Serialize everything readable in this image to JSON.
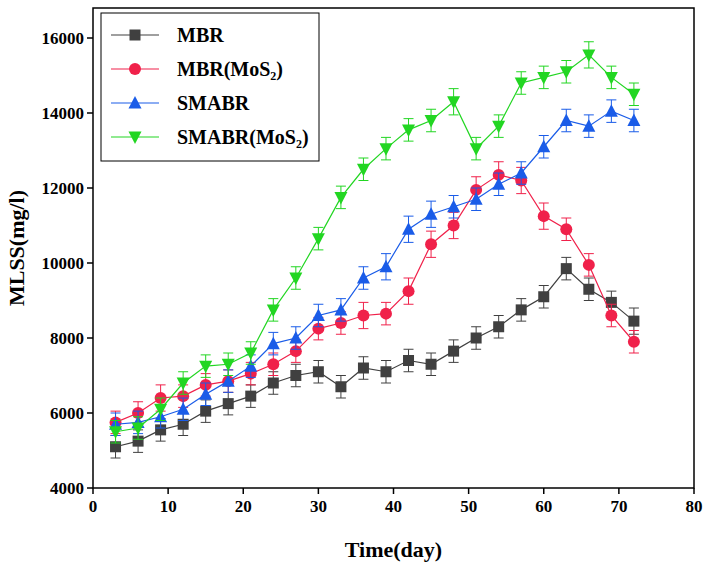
{
  "chart_data": {
    "type": "line",
    "x_label": "Time(day)",
    "y_label": "MLSS(mg/l)",
    "x": [
      3,
      6,
      9,
      12,
      15,
      18,
      21,
      24,
      27,
      30,
      33,
      36,
      39,
      42,
      45,
      48,
      51,
      54,
      57,
      60,
      63,
      66,
      69,
      72
    ],
    "xlim": [
      0,
      80
    ],
    "xticks": [
      0,
      10,
      20,
      30,
      40,
      50,
      60,
      70,
      80
    ],
    "ylim": [
      4000,
      16800
    ],
    "yticks": [
      4000,
      6000,
      8000,
      10000,
      12000,
      14000,
      16000
    ],
    "grid": false,
    "legend": "upper left",
    "series": [
      {
        "name": "MBR",
        "color": "#404040",
        "marker": "square",
        "line_style": "solid",
        "values": [
          5100,
          5250,
          5550,
          5700,
          6050,
          6250,
          6450,
          6800,
          7000,
          7100,
          6700,
          7200,
          7100,
          7400,
          7300,
          7650,
          8000,
          8300,
          8750,
          9100,
          9850,
          9300,
          8950,
          8450
        ],
        "errors": [
          300,
          300,
          300,
          300,
          300,
          300,
          300,
          300,
          300,
          300,
          300,
          300,
          300,
          300,
          300,
          300,
          300,
          300,
          300,
          300,
          300,
          300,
          300,
          350
        ]
      },
      {
        "name": "MBR(MoS₂)",
        "color": "#f0214a",
        "marker": "circle",
        "line_style": "solid",
        "values": [
          5750,
          6000,
          6400,
          6450,
          6750,
          6850,
          7050,
          7300,
          7650,
          8250,
          8400,
          8600,
          8650,
          9250,
          10500,
          11000,
          11950,
          12350,
          12200,
          11250,
          10900,
          9950,
          8600,
          7900
        ],
        "errors": [
          300,
          300,
          350,
          300,
          300,
          300,
          300,
          300,
          300,
          300,
          300,
          350,
          300,
          350,
          350,
          350,
          350,
          350,
          350,
          350,
          300,
          300,
          300,
          300
        ]
      },
      {
        "name": "SMABR",
        "color": "#1a5ce8",
        "marker": "triangle",
        "line_style": "solid",
        "values": [
          5700,
          5750,
          5900,
          6100,
          6500,
          6850,
          7250,
          7850,
          8000,
          8600,
          8750,
          9600,
          9900,
          10900,
          11300,
          11500,
          11700,
          12100,
          12400,
          13100,
          13800,
          13650,
          14050,
          13800
        ],
        "errors": [
          300,
          300,
          300,
          300,
          300,
          300,
          300,
          300,
          300,
          300,
          300,
          300,
          350,
          350,
          350,
          300,
          300,
          300,
          300,
          300,
          300,
          300,
          300,
          300
        ]
      },
      {
        "name": "SMABR(MoS₂)",
        "color": "#22d622",
        "marker": "triangle-down",
        "line_style": "solid",
        "values": [
          5500,
          5600,
          6100,
          6800,
          7250,
          7300,
          7600,
          8750,
          9600,
          10650,
          11750,
          12500,
          13050,
          13550,
          13800,
          14300,
          13050,
          13650,
          14800,
          14950,
          15100,
          15550,
          14950,
          14500
        ],
        "errors": [
          300,
          300,
          300,
          300,
          300,
          300,
          300,
          300,
          300,
          300,
          300,
          300,
          300,
          300,
          300,
          350,
          300,
          300,
          300,
          300,
          300,
          350,
          300,
          300
        ]
      }
    ]
  }
}
